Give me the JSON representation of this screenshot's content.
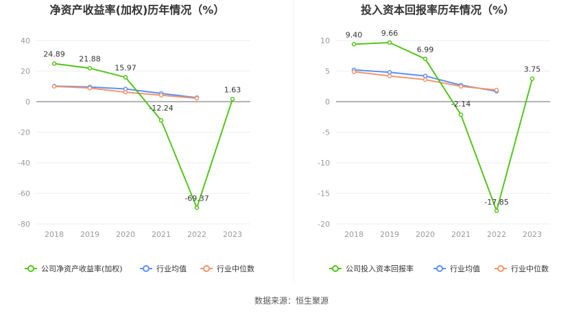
{
  "source": "数据来源：恒生聚源",
  "colors": {
    "company": "#52c41a",
    "avg": "#5b8ff9",
    "median": "#f4956a",
    "grid": "#eeeeee",
    "axis": "#666666"
  },
  "chart_data": [
    {
      "type": "line",
      "title": "净资产收益率(加权)历年情况（%）",
      "categories": [
        "2018",
        "2019",
        "2020",
        "2021",
        "2022",
        "2023"
      ],
      "ylim": [
        -80,
        40
      ],
      "yticks": [
        -80,
        -60,
        -40,
        -20,
        0,
        20,
        40
      ],
      "ytick_labels": [
        "-80",
        "-60",
        "-40",
        "-20",
        "0",
        "20",
        "40"
      ],
      "grid": true,
      "legend_position": "bottom",
      "series": [
        {
          "name": "公司净资产收益率(加权)",
          "key": "company",
          "values": [
            24.89,
            21.88,
            15.97,
            -12.24,
            -69.37,
            1.63
          ],
          "labels": [
            "24.89",
            "21.88",
            "15.97",
            "-12.24",
            "-69.37",
            "1.63"
          ]
        },
        {
          "name": "行业均值",
          "key": "avg",
          "values": [
            10.2,
            9.6,
            8.3,
            5.4,
            2.6,
            null
          ]
        },
        {
          "name": "行业中位数",
          "key": "median",
          "values": [
            10.0,
            8.9,
            6.2,
            4.2,
            2.2,
            null
          ]
        }
      ]
    },
    {
      "type": "line",
      "title": "投入资本回报率历年情况（%）",
      "categories": [
        "2018",
        "2019",
        "2020",
        "2021",
        "2022",
        "2023"
      ],
      "ylim": [
        -20,
        10
      ],
      "yticks": [
        -20,
        -15,
        -10,
        -5,
        0,
        5,
        10
      ],
      "ytick_labels": [
        "-20",
        "-15",
        "-10",
        "-5",
        "0",
        "5",
        "10"
      ],
      "grid": true,
      "legend_position": "bottom",
      "series": [
        {
          "name": "公司投入资本回报率",
          "key": "company",
          "values": [
            9.4,
            9.66,
            6.99,
            -2.14,
            -17.85,
            3.75
          ],
          "labels": [
            "9.40",
            "9.66",
            "6.99",
            "-2.14",
            "-17.85",
            "3.75"
          ]
        },
        {
          "name": "行业均值",
          "key": "avg",
          "values": [
            5.2,
            4.8,
            4.2,
            2.7,
            1.7,
            null
          ]
        },
        {
          "name": "行业中位数",
          "key": "median",
          "values": [
            4.9,
            4.2,
            3.6,
            2.5,
            1.9,
            null
          ]
        }
      ]
    }
  ]
}
